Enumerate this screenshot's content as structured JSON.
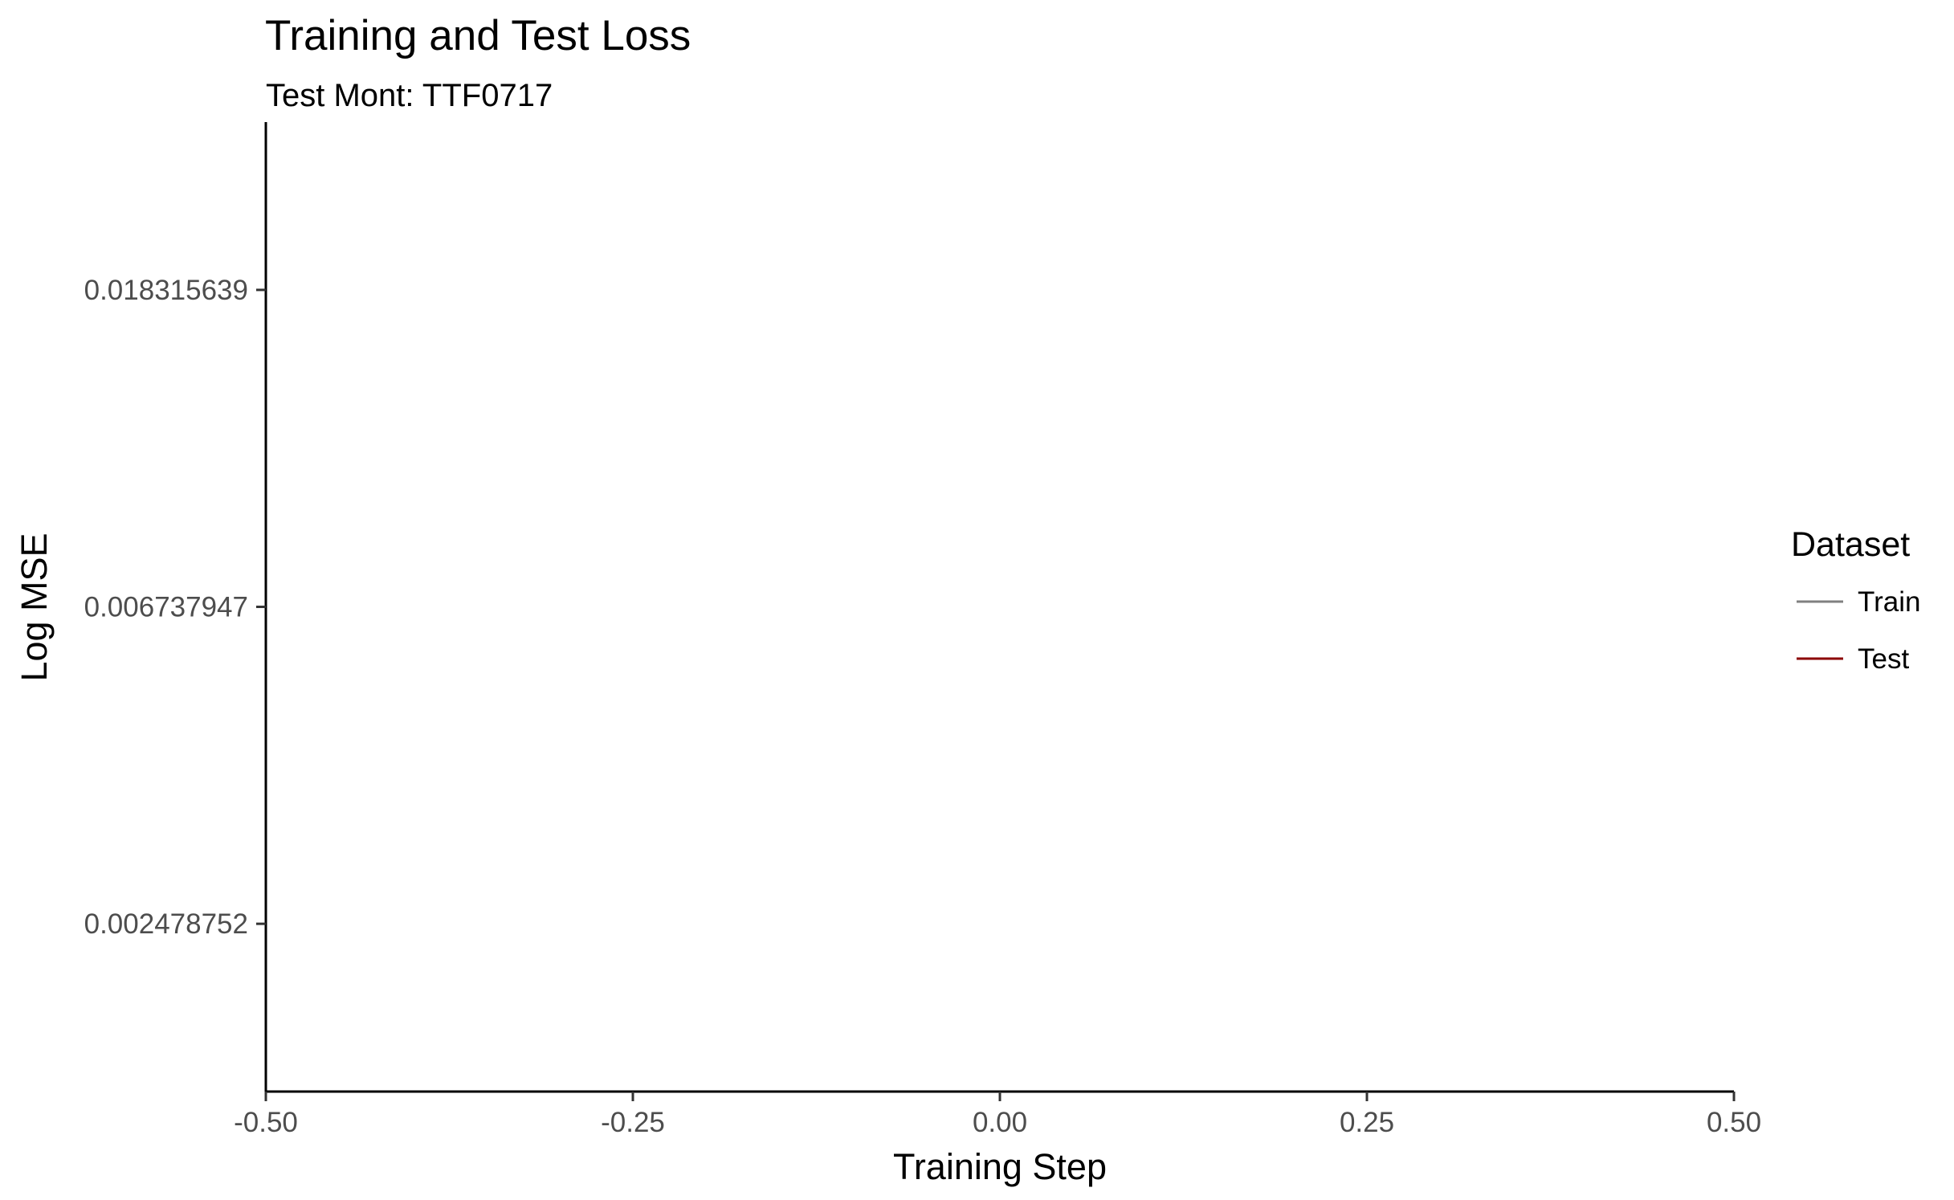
{
  "chart_data": {
    "type": "line",
    "title": "Training and Test Loss",
    "subtitle": "Test Mont: TTF0717",
    "xlabel": "Training Step",
    "ylabel": "Log MSE",
    "xlim": [
      -0.5,
      0.5
    ],
    "x_ticks": [
      -0.5,
      -0.25,
      0,
      0.25,
      0.5
    ],
    "x_tick_labels": [
      "-0.50",
      "-0.25",
      "0.00",
      "0.25",
      "0.50"
    ],
    "y_scale": "log",
    "y_ticks": [
      0.018315639,
      0.006737947,
      0.002478752
    ],
    "y_tick_labels": [
      "0.018315639",
      "0.006737947",
      "0.002478752"
    ],
    "ylim": [
      0.00146,
      0.0311
    ],
    "grid": false,
    "legend": {
      "title": "Dataset",
      "position": "right",
      "entries": [
        {
          "name": "Train",
          "color": "#808080"
        },
        {
          "name": "Test",
          "color": "#8b0000"
        }
      ]
    },
    "series": [
      {
        "name": "Train",
        "color": "#808080",
        "x": [],
        "y": []
      },
      {
        "name": "Test",
        "color": "#8b0000",
        "x": [],
        "y": []
      }
    ]
  }
}
